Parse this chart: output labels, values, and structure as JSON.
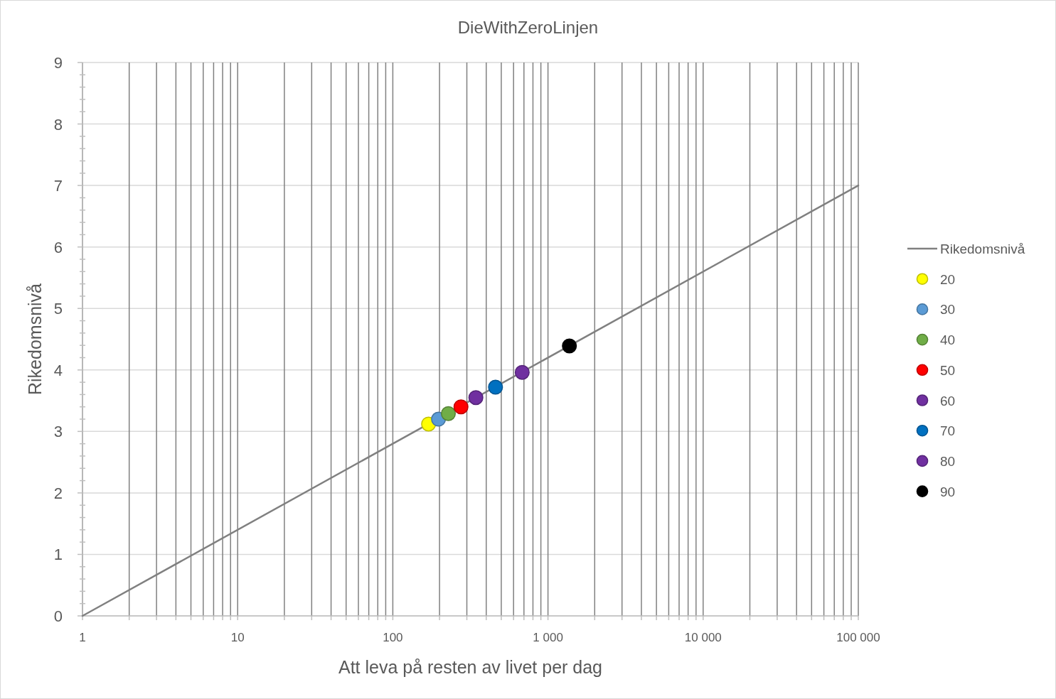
{
  "chart_data": {
    "type": "scatter",
    "title": "DieWithZeroLinjen",
    "xlabel": "Att leva på resten av livet per dag",
    "ylabel": "Rikedomsnivå",
    "log": "x",
    "xlim": [
      1,
      100000
    ],
    "ylim": [
      0,
      9
    ],
    "xticks": [
      1,
      {
        "value": 2,
        "label": null
      },
      {
        "value": 3,
        "label": null
      },
      {
        "value": 4,
        "label": null
      },
      {
        "value": 5,
        "label": null
      },
      {
        "value": 6,
        "label": null
      },
      {
        "value": 7,
        "label": null
      },
      {
        "value": 8,
        "label": null
      },
      {
        "value": 9,
        "label": null
      },
      10,
      {
        "value": 20,
        "label": null
      },
      {
        "value": 30,
        "label": null
      },
      {
        "value": 40,
        "label": null
      },
      {
        "value": 50,
        "label": null
      },
      {
        "value": 60,
        "label": null
      },
      {
        "value": 70,
        "label": null
      },
      {
        "value": 80,
        "label": null
      },
      {
        "value": 90,
        "label": null
      },
      100,
      {
        "value": 200,
        "label": null
      },
      {
        "value": 300,
        "label": null
      },
      {
        "value": 400,
        "label": null
      },
      {
        "value": 500,
        "label": null
      },
      {
        "value": 600,
        "label": null
      },
      {
        "value": 700,
        "label": null
      },
      {
        "value": 800,
        "label": null
      },
      {
        "value": 900,
        "label": null
      },
      {
        "value": 1000,
        "label": "1 000"
      },
      {
        "value": 2000,
        "label": null
      },
      {
        "value": 3000,
        "label": null
      },
      {
        "value": 4000,
        "label": null
      },
      {
        "value": 5000,
        "label": null
      },
      {
        "value": 6000,
        "label": null
      },
      {
        "value": 7000,
        "label": null
      },
      {
        "value": 8000,
        "label": null
      },
      {
        "value": 9000,
        "label": null
      },
      {
        "value": 10000,
        "label": "10 000"
      },
      {
        "value": 20000,
        "label": null
      },
      {
        "value": 30000,
        "label": null
      },
      {
        "value": 40000,
        "label": null
      },
      {
        "value": 50000,
        "label": null
      },
      {
        "value": 60000,
        "label": null
      },
      {
        "value": 70000,
        "label": null
      },
      {
        "value": 80000,
        "label": null
      },
      {
        "value": 90000,
        "label": null
      },
      {
        "value": 100000,
        "label": "100 000"
      }
    ],
    "yticks": [
      0,
      {
        "value": 0.2,
        "label": null
      },
      {
        "value": 0.4,
        "label": null
      },
      {
        "value": 0.6,
        "label": null
      },
      {
        "value": 0.8,
        "label": null
      },
      1,
      {
        "value": 1.2,
        "label": null
      },
      {
        "value": 1.4,
        "label": null
      },
      {
        "value": 1.6,
        "label": null
      },
      {
        "value": 1.8,
        "label": null
      },
      2,
      {
        "value": 2.2,
        "label": null
      },
      {
        "value": 2.4,
        "label": null
      },
      {
        "value": 2.6,
        "label": null
      },
      {
        "value": 2.8,
        "label": null
      },
      3,
      {
        "value": 3.2,
        "label": null
      },
      {
        "value": 3.4,
        "label": null
      },
      {
        "value": 3.6,
        "label": null
      },
      {
        "value": 3.8,
        "label": null
      },
      4,
      {
        "value": 4.2,
        "label": null
      },
      {
        "value": 4.4,
        "label": null
      },
      {
        "value": 4.6,
        "label": null
      },
      {
        "value": 4.8,
        "label": null
      },
      5,
      {
        "value": 5.2,
        "label": null
      },
      {
        "value": 5.4,
        "label": null
      },
      {
        "value": 5.6,
        "label": null
      },
      {
        "value": 5.8,
        "label": null
      },
      6,
      {
        "value": 6.2,
        "label": null
      },
      {
        "value": 6.4,
        "label": null
      },
      {
        "value": 6.6,
        "label": null
      },
      {
        "value": 6.8,
        "label": null
      },
      7,
      {
        "value": 7.2,
        "label": null
      },
      {
        "value": 7.4,
        "label": null
      },
      {
        "value": 7.6,
        "label": null
      },
      {
        "value": 7.8,
        "label": null
      },
      8,
      {
        "value": 8.2,
        "label": null
      },
      {
        "value": 8.4,
        "label": null
      },
      {
        "value": 8.6,
        "label": null
      },
      {
        "value": 8.8,
        "label": null
      },
      9
    ],
    "grid": true,
    "legend": "right",
    "marker": "circle",
    "series": [
      {
        "name": "Rikedomsnivå",
        "type": "line",
        "marker": "none",
        "color": "#808080",
        "x": [
          1,
          100000
        ],
        "values": [
          0,
          7
        ]
      },
      {
        "name": "20",
        "color": "#ffff00",
        "x": [
          170
        ],
        "values": [
          3.12
        ]
      },
      {
        "name": "30",
        "color": "#5b9bd5",
        "x": [
          197
        ],
        "values": [
          3.2
        ]
      },
      {
        "name": "40",
        "color": "#70ad47",
        "x": [
          228
        ],
        "values": [
          3.29
        ]
      },
      {
        "name": "50",
        "color": "#ff0000",
        "x": [
          275
        ],
        "values": [
          3.4
        ]
      },
      {
        "name": "60",
        "color": "#7030a0",
        "x": [
          343
        ],
        "values": [
          3.55
        ]
      },
      {
        "name": "70",
        "color": "#0070c0",
        "x": [
          459
        ],
        "values": [
          3.72
        ]
      },
      {
        "name": "80",
        "color": "#7030a0",
        "x": [
          682
        ],
        "values": [
          3.96
        ]
      },
      {
        "name": "90",
        "color": "#000000",
        "x": [
          1374
        ],
        "values": [
          4.39
        ]
      }
    ]
  }
}
